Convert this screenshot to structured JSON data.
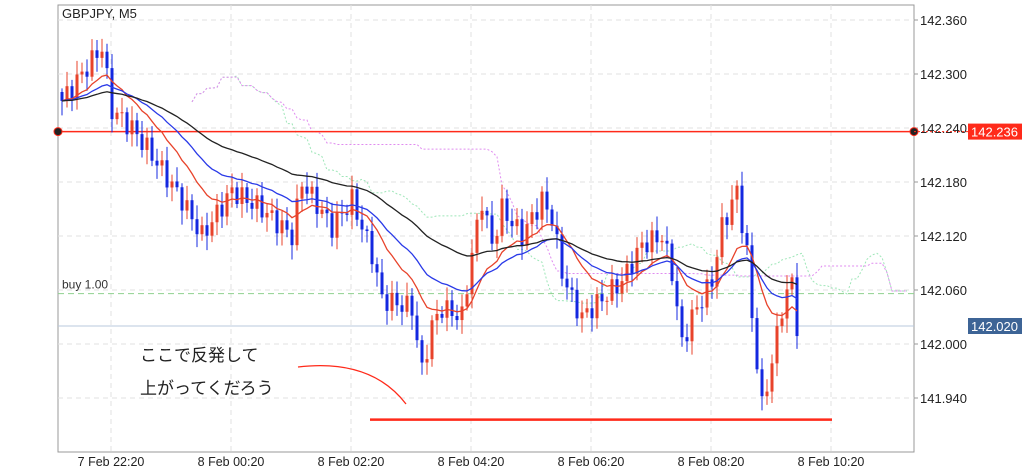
{
  "header": {
    "symbol_label": "GBPJPY, M5"
  },
  "orders": {
    "buy_label": "buy 1.00",
    "buy_price": 142.056
  },
  "annotation": {
    "line1": "ここで反発して",
    "line2": "上がってくだろう",
    "support_price": 141.916
  },
  "colors": {
    "bull": "#e8432b",
    "bear": "#1428e0",
    "ma_fast": "#e8432b",
    "ma_mid": "#2a3ae8",
    "ma_slow": "#222222",
    "hline": "#ff2a1a",
    "current": "#3d6496",
    "cloud_a": "#9ee6b8",
    "cloud_b": "#e08cf0"
  },
  "chart_data": {
    "type": "candlestick",
    "title": "GBPJPY, M5",
    "ylim": [
      141.9,
      142.375
    ],
    "yticks": [
      142.36,
      142.3,
      142.24,
      142.18,
      142.12,
      142.06,
      142.0,
      141.94
    ],
    "ytick_labels": [
      "142.360",
      "142.300",
      "142.240",
      "142.180",
      "142.120",
      "142.060",
      "142.000",
      "141.940"
    ],
    "xtick_labels": [
      "7 Feb 22:20",
      "8 Feb 00:20",
      "8 Feb 02:20",
      "8 Feb 04:20",
      "8 Feb 06:20",
      "8 Feb 08:20",
      "8 Feb 10:20"
    ],
    "xtick_candle_index": [
      10,
      34,
      58,
      82,
      106,
      130,
      154
    ],
    "candle_count": 148,
    "close_keypoints": [
      [
        0,
        142.27
      ],
      [
        4,
        142.3
      ],
      [
        8,
        142.33
      ],
      [
        10,
        142.26
      ],
      [
        14,
        142.24
      ],
      [
        18,
        142.21
      ],
      [
        24,
        142.16
      ],
      [
        28,
        142.12
      ],
      [
        34,
        142.17
      ],
      [
        40,
        142.15
      ],
      [
        46,
        142.12
      ],
      [
        48,
        142.18
      ],
      [
        54,
        142.13
      ],
      [
        58,
        142.16
      ],
      [
        62,
        142.1
      ],
      [
        64,
        142.05
      ],
      [
        70,
        142.04
      ],
      [
        72,
        141.97
      ],
      [
        74,
        142.02
      ],
      [
        76,
        142.04
      ],
      [
        80,
        142.03
      ],
      [
        82,
        142.1
      ],
      [
        84,
        142.16
      ],
      [
        86,
        142.11
      ],
      [
        88,
        142.15
      ],
      [
        92,
        142.12
      ],
      [
        96,
        142.16
      ],
      [
        98,
        142.14
      ],
      [
        100,
        142.08
      ],
      [
        102,
        142.05
      ],
      [
        104,
        142.03
      ],
      [
        108,
        142.05
      ],
      [
        112,
        142.07
      ],
      [
        116,
        142.11
      ],
      [
        120,
        142.12
      ],
      [
        122,
        142.08
      ],
      [
        124,
        142.0
      ],
      [
        126,
        142.03
      ],
      [
        128,
        142.05
      ],
      [
        130,
        142.07
      ],
      [
        132,
        142.13
      ],
      [
        135,
        142.17
      ],
      [
        137,
        142.1
      ],
      [
        138,
        142.03
      ],
      [
        140,
        141.93
      ],
      [
        142,
        141.98
      ],
      [
        144,
        142.04
      ],
      [
        146,
        142.07
      ],
      [
        147,
        142.02
      ]
    ],
    "horizontal_lines": [
      {
        "label": "142.236",
        "price": 142.236
      },
      {
        "label": "142.020",
        "price": 142.02
      }
    ],
    "ma_periods": [
      13,
      26,
      52
    ]
  }
}
